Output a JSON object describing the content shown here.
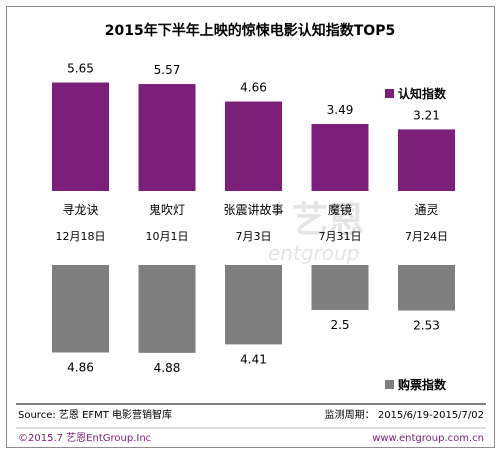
{
  "chart_data": {
    "type": "bar",
    "title": "2015年下半年上映的惊悚电影认知指数TOP5",
    "categories": [
      "寻龙诀",
      "鬼吹灯",
      "张震讲故事",
      "魔镜",
      "通灵"
    ],
    "release_dates": [
      "12月18日",
      "10月1日",
      "7月3日",
      "7月31日",
      "7月24日"
    ],
    "series": [
      {
        "name": "认知指数",
        "values": [
          5.65,
          5.57,
          4.66,
          3.49,
          3.21
        ],
        "color": "#7b1f7a"
      },
      {
        "name": "购票指数",
        "values": [
          4.86,
          4.88,
          4.41,
          2.5,
          2.53
        ],
        "color": "#7f7f7f"
      }
    ],
    "legend_placement": "right",
    "grid": false
  },
  "watermark": {
    "line1": "艺恩",
    "line2": "entgroup"
  },
  "footer": {
    "source": "Source: 艺恩 EFMT 电影营销智库",
    "period": "监测周期： 2015/6/19-2015/7/02",
    "copyright": "©2015.7 艺恩EntGroup.Inc",
    "website": "www.entgroup.com.cn",
    "copyright_color": "#7b1f7a"
  }
}
